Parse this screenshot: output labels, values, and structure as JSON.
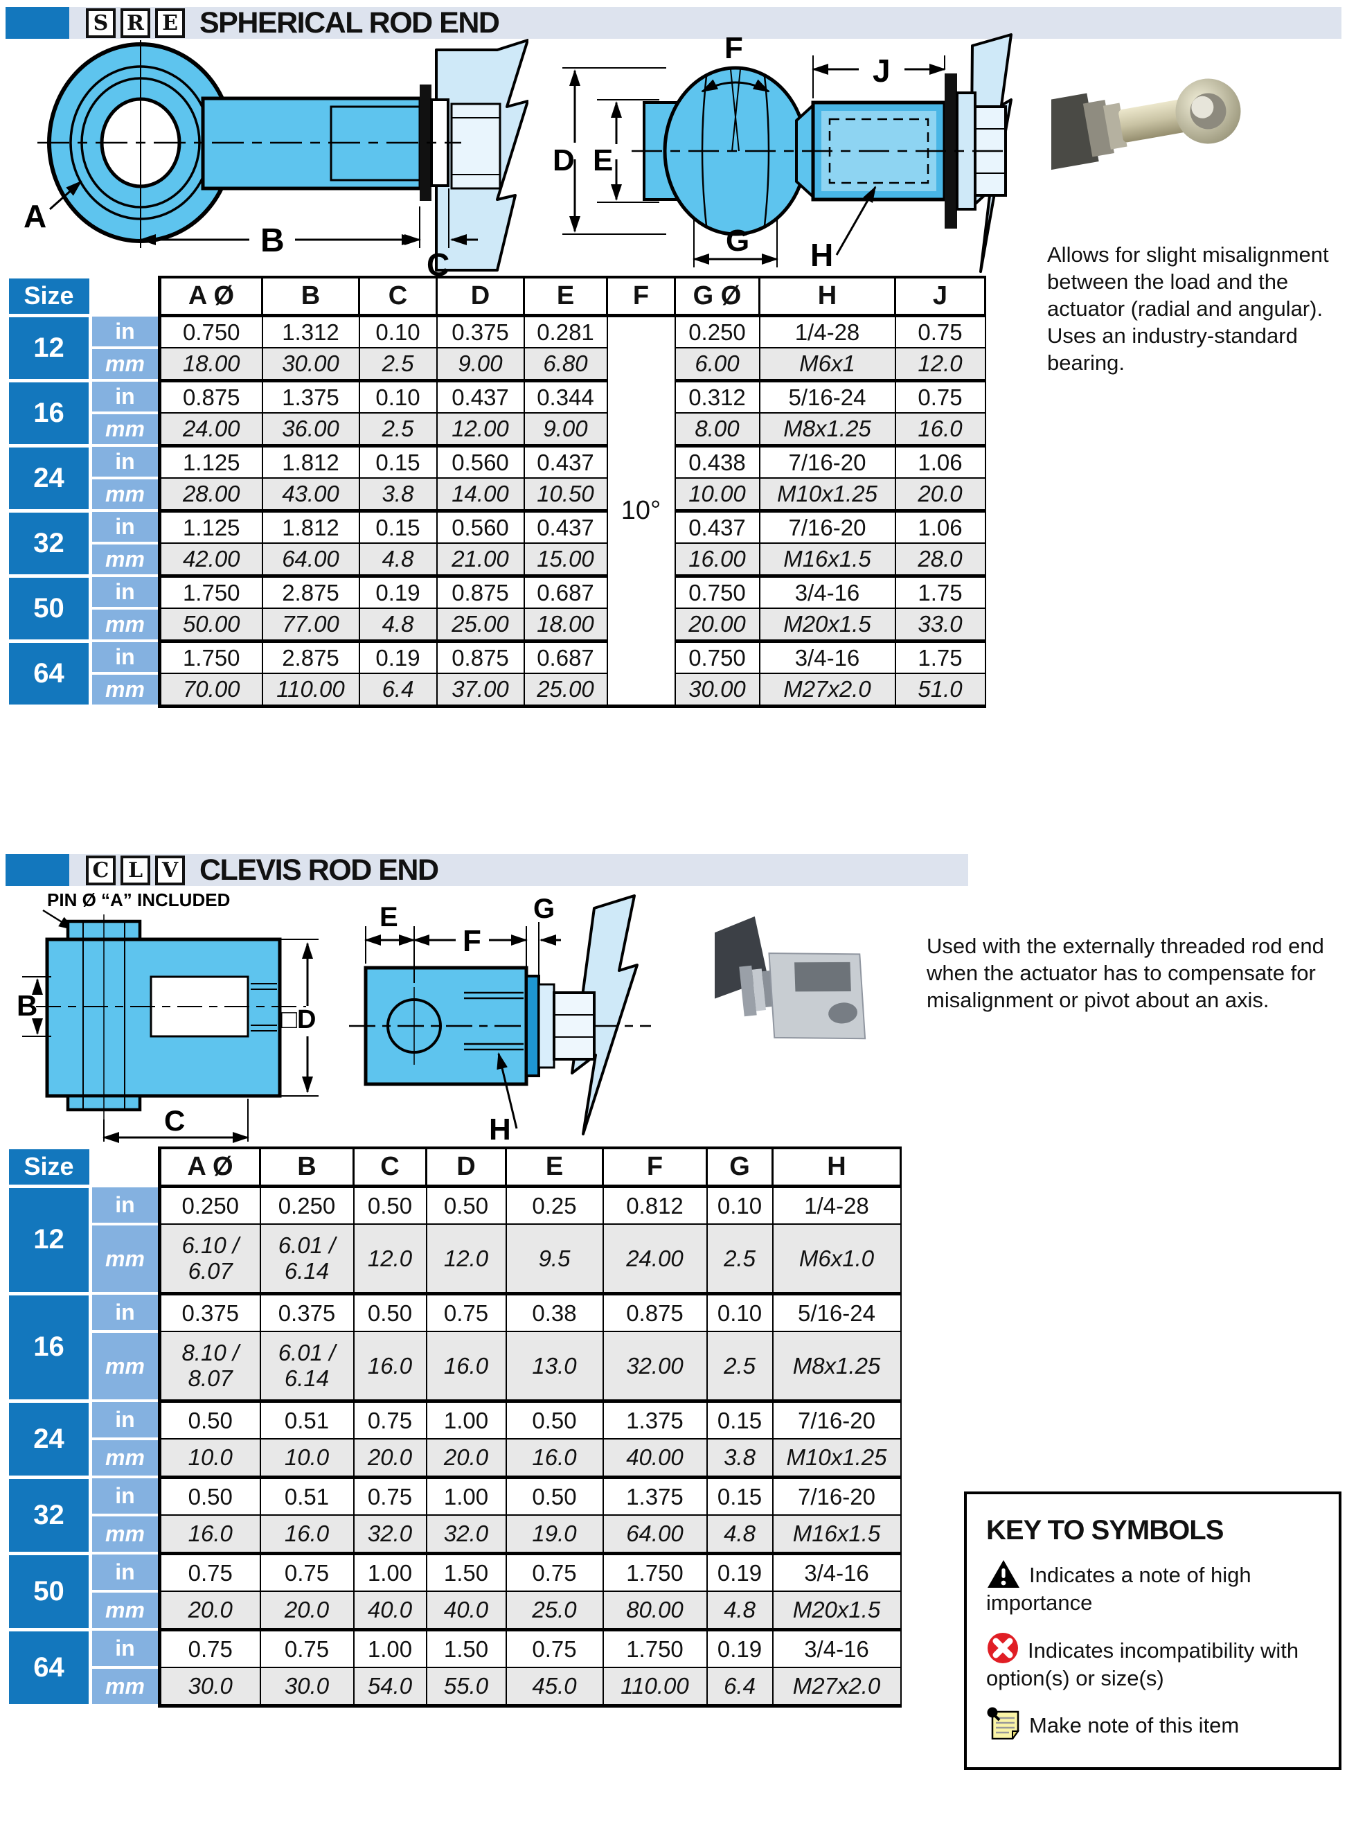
{
  "colors": {
    "brand_blue": "#1377bd",
    "band_bg": "#dde3ee",
    "unit_cell_blue": "#84b1e0",
    "mm_row_gray": "#e8e8e8",
    "diagram_blue": "#5ec4ee",
    "diagram_pale_blue": "#cfe9f8",
    "alert_red": "#e01e25",
    "note_yellow": "#faf4a6"
  },
  "sre": {
    "code": [
      "S",
      "R",
      "E"
    ],
    "title": "SPHERICAL ROD END",
    "description": "Allows for slight misalignment between the load and the actuator (radial and angular). Uses an industry-standard bearing.",
    "front_labels": [
      "A",
      "B",
      "C"
    ],
    "side_labels": [
      "D",
      "E",
      "F",
      "G",
      "H",
      "J"
    ],
    "table": {
      "size_header": "Size",
      "unit_labels": [
        "in",
        "mm"
      ],
      "columns": [
        "A Ø",
        "B",
        "C",
        "D",
        "E",
        "F",
        "G Ø",
        "H",
        "J"
      ],
      "f_value": "10°",
      "groups": [
        {
          "size": "12",
          "in": [
            "0.750",
            "1.312",
            "0.10",
            "0.375",
            "0.281",
            "0.250",
            "1/4-28",
            "0.75"
          ],
          "mm": [
            "18.00",
            "30.00",
            "2.5",
            "9.00",
            "6.80",
            "6.00",
            "M6x1",
            "12.0"
          ]
        },
        {
          "size": "16",
          "in": [
            "0.875",
            "1.375",
            "0.10",
            "0.437",
            "0.344",
            "0.312",
            "5/16-24",
            "0.75"
          ],
          "mm": [
            "24.00",
            "36.00",
            "2.5",
            "12.00",
            "9.00",
            "8.00",
            "M8x1.25",
            "16.0"
          ]
        },
        {
          "size": "24",
          "in": [
            "1.125",
            "1.812",
            "0.15",
            "0.560",
            "0.437",
            "0.438",
            "7/16-20",
            "1.06"
          ],
          "mm": [
            "28.00",
            "43.00",
            "3.8",
            "14.00",
            "10.50",
            "10.00",
            "M10x1.25",
            "20.0"
          ]
        },
        {
          "size": "32",
          "in": [
            "1.125",
            "1.812",
            "0.15",
            "0.560",
            "0.437",
            "0.437",
            "7/16-20",
            "1.06"
          ],
          "mm": [
            "42.00",
            "64.00",
            "4.8",
            "21.00",
            "15.00",
            "16.00",
            "M16x1.5",
            "28.0"
          ]
        },
        {
          "size": "50",
          "in": [
            "1.750",
            "2.875",
            "0.19",
            "0.875",
            "0.687",
            "0.750",
            "3/4-16",
            "1.75"
          ],
          "mm": [
            "50.00",
            "77.00",
            "4.8",
            "25.00",
            "18.00",
            "20.00",
            "M20x1.5",
            "33.0"
          ]
        },
        {
          "size": "64",
          "in": [
            "1.750",
            "2.875",
            "0.19",
            "0.875",
            "0.687",
            "0.750",
            "3/4-16",
            "1.75"
          ],
          "mm": [
            "70.00",
            "110.00",
            "6.4",
            "37.00",
            "25.00",
            "30.00",
            "M27x2.0",
            "51.0"
          ]
        }
      ]
    }
  },
  "clv": {
    "code": [
      "C",
      "L",
      "V"
    ],
    "title": "CLEVIS ROD END",
    "pin_note": "PIN Ø “A” INCLUDED",
    "description": "Used with the externally threaded rod end when the actuator has to compensate for misalignment or pivot about an axis.",
    "front_labels": [
      "B",
      "C",
      "□D"
    ],
    "side_labels": [
      "E",
      "F",
      "G",
      "H"
    ],
    "table": {
      "size_header": "Size",
      "unit_labels": [
        "in",
        "mm"
      ],
      "columns": [
        "A Ø",
        "B",
        "C",
        "D",
        "E",
        "F",
        "G",
        "H"
      ],
      "groups": [
        {
          "size": "12",
          "in": [
            "0.250",
            "0.250",
            "0.50",
            "0.50",
            "0.25",
            "0.812",
            "0.10",
            "1/4-28"
          ],
          "mm": [
            "6.10 / 6.07",
            "6.01 / 6.14",
            "12.0",
            "12.0",
            "9.5",
            "24.00",
            "2.5",
            "M6x1.0"
          ]
        },
        {
          "size": "16",
          "in": [
            "0.375",
            "0.375",
            "0.50",
            "0.75",
            "0.38",
            "0.875",
            "0.10",
            "5/16-24"
          ],
          "mm": [
            "8.10 / 8.07",
            "6.01 / 6.14",
            "16.0",
            "16.0",
            "13.0",
            "32.00",
            "2.5",
            "M8x1.25"
          ]
        },
        {
          "size": "24",
          "in": [
            "0.50",
            "0.51",
            "0.75",
            "1.00",
            "0.50",
            "1.375",
            "0.15",
            "7/16-20"
          ],
          "mm": [
            "10.0",
            "10.0",
            "20.0",
            "20.0",
            "16.0",
            "40.00",
            "3.8",
            "M10x1.25"
          ]
        },
        {
          "size": "32",
          "in": [
            "0.50",
            "0.51",
            "0.75",
            "1.00",
            "0.50",
            "1.375",
            "0.15",
            "7/16-20"
          ],
          "mm": [
            "16.0",
            "16.0",
            "32.0",
            "32.0",
            "19.0",
            "64.00",
            "4.8",
            "M16x1.5"
          ]
        },
        {
          "size": "50",
          "in": [
            "0.75",
            "0.75",
            "1.00",
            "1.50",
            "0.75",
            "1.750",
            "0.19",
            "3/4-16"
          ],
          "mm": [
            "20.0",
            "20.0",
            "40.0",
            "40.0",
            "25.0",
            "80.00",
            "4.8",
            "M20x1.5"
          ]
        },
        {
          "size": "64",
          "in": [
            "0.75",
            "0.75",
            "1.00",
            "1.50",
            "0.75",
            "1.750",
            "0.19",
            "3/4-16"
          ],
          "mm": [
            "30.0",
            "30.0",
            "54.0",
            "55.0",
            "45.0",
            "110.00",
            "6.4",
            "M27x2.0"
          ]
        }
      ]
    }
  },
  "key": {
    "title": "KEY TO SYMBOLS",
    "items": [
      {
        "icon": "warning-icon",
        "text": "Indicates a note of high importance"
      },
      {
        "icon": "incompatibility-icon",
        "text": "Indicates incompatibility with option(s) or size(s)"
      },
      {
        "icon": "note-icon",
        "text": "Make note of this item"
      }
    ]
  }
}
